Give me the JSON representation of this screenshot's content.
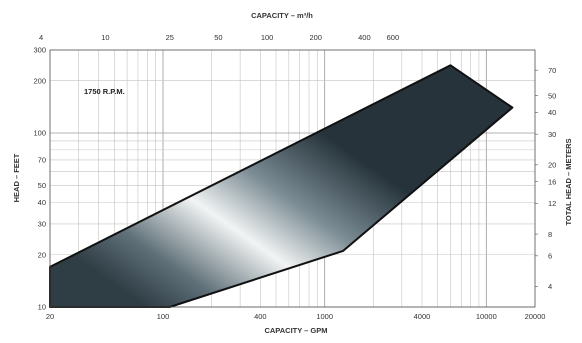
{
  "chart_data": {
    "type": "area",
    "annotation": "1750 R.P.M.",
    "x_axis": {
      "label": "CAPACITY – GPM",
      "scale": "log",
      "range": [
        20,
        20000
      ],
      "ticks": [
        20,
        100,
        400,
        1000,
        4000,
        10000,
        20000
      ],
      "tick_labels": [
        "20",
        "100",
        "400",
        "1000",
        "4000",
        "10000",
        "20000"
      ]
    },
    "x2_axis": {
      "label": "CAPACITY – m³/h",
      "ticks": [
        4,
        10,
        25,
        50,
        100,
        200,
        400,
        600
      ],
      "tick_labels": [
        "4",
        "10",
        "25",
        "50",
        "100",
        "200",
        "400",
        "600"
      ]
    },
    "y_axis": {
      "label": "HEAD – FEET",
      "scale": "log",
      "range": [
        10,
        300
      ],
      "ticks": [
        10,
        20,
        30,
        40,
        50,
        70,
        100,
        200,
        300
      ],
      "tick_labels": [
        "10",
        "20",
        "30",
        "40",
        "50",
        "70",
        "100",
        "200",
        "300"
      ]
    },
    "y2_axis": {
      "label": "TOTAL HEAD – METERS",
      "ticks": [
        4,
        6,
        8,
        12,
        16,
        20,
        30,
        40,
        50,
        70
      ],
      "tick_labels": [
        "4",
        "6",
        "8",
        "12",
        "16",
        "20",
        "30",
        "40",
        "50",
        "70"
      ]
    },
    "grid": true,
    "series": [
      {
        "name": "",
        "polygon": [
          {
            "x": 20,
            "y": 10
          },
          {
            "x": 20,
            "y": 17
          },
          {
            "x": 6000,
            "y": 245
          },
          {
            "x": 14500,
            "y": 140
          },
          {
            "x": 1300,
            "y": 21
          },
          {
            "x": 110,
            "y": 10
          }
        ]
      }
    ]
  }
}
